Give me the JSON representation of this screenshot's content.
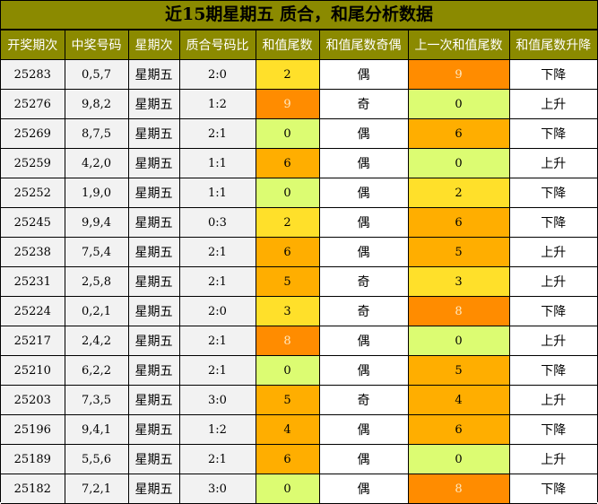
{
  "title": "近15期星期五 质合，和尾分析数据",
  "columns": [
    "开奖期次",
    "中奖号码",
    "星期次",
    "质合号码比",
    "和值尾数",
    "和值尾数奇偶",
    "上一次和值尾数",
    "和值尾数升降"
  ],
  "colors": {
    "header_bg": "#8b8a00",
    "header_text": "#ffffff",
    "orange": "#ff8c00",
    "amber": "#ffae00",
    "yellow": "#ffe02a",
    "lime": "#dcfc72",
    "grey": "#f2f2f2"
  },
  "rows": [
    {
      "period": "25283",
      "numbers": "0,5,7",
      "day": "星期五",
      "ratio": "2:0",
      "tail": "2",
      "tail_color": "yellow",
      "odd_even": "偶",
      "prev_tail": "9",
      "prev_color": "orange",
      "trend": "下降"
    },
    {
      "period": "25276",
      "numbers": "9,8,2",
      "day": "星期五",
      "ratio": "1:2",
      "tail": "9",
      "tail_color": "orange",
      "odd_even": "奇",
      "prev_tail": "0",
      "prev_color": "lime",
      "trend": "上升"
    },
    {
      "period": "25269",
      "numbers": "8,7,5",
      "day": "星期五",
      "ratio": "2:1",
      "tail": "0",
      "tail_color": "lime",
      "odd_even": "偶",
      "prev_tail": "6",
      "prev_color": "amber",
      "trend": "下降"
    },
    {
      "period": "25259",
      "numbers": "4,2,0",
      "day": "星期五",
      "ratio": "1:1",
      "tail": "6",
      "tail_color": "amber",
      "odd_even": "偶",
      "prev_tail": "0",
      "prev_color": "lime",
      "trend": "上升"
    },
    {
      "period": "25252",
      "numbers": "1,9,0",
      "day": "星期五",
      "ratio": "1:1",
      "tail": "0",
      "tail_color": "lime",
      "odd_even": "偶",
      "prev_tail": "2",
      "prev_color": "yellow",
      "trend": "下降"
    },
    {
      "period": "25245",
      "numbers": "9,9,4",
      "day": "星期五",
      "ratio": "0:3",
      "tail": "2",
      "tail_color": "yellow",
      "odd_even": "偶",
      "prev_tail": "6",
      "prev_color": "amber",
      "trend": "下降"
    },
    {
      "period": "25238",
      "numbers": "7,5,4",
      "day": "星期五",
      "ratio": "2:1",
      "tail": "6",
      "tail_color": "amber",
      "odd_even": "偶",
      "prev_tail": "5",
      "prev_color": "amber",
      "trend": "上升"
    },
    {
      "period": "25231",
      "numbers": "2,5,8",
      "day": "星期五",
      "ratio": "2:1",
      "tail": "5",
      "tail_color": "amber",
      "odd_even": "奇",
      "prev_tail": "3",
      "prev_color": "yellow",
      "trend": "上升"
    },
    {
      "period": "25224",
      "numbers": "0,2,1",
      "day": "星期五",
      "ratio": "2:0",
      "tail": "3",
      "tail_color": "yellow",
      "odd_even": "奇",
      "prev_tail": "8",
      "prev_color": "orange",
      "trend": "下降"
    },
    {
      "period": "25217",
      "numbers": "2,4,2",
      "day": "星期五",
      "ratio": "2:1",
      "tail": "8",
      "tail_color": "orange",
      "odd_even": "偶",
      "prev_tail": "0",
      "prev_color": "lime",
      "trend": "上升"
    },
    {
      "period": "25210",
      "numbers": "6,2,2",
      "day": "星期五",
      "ratio": "2:1",
      "tail": "0",
      "tail_color": "lime",
      "odd_even": "偶",
      "prev_tail": "5",
      "prev_color": "amber",
      "trend": "下降"
    },
    {
      "period": "25203",
      "numbers": "7,3,5",
      "day": "星期五",
      "ratio": "3:0",
      "tail": "5",
      "tail_color": "amber",
      "odd_even": "奇",
      "prev_tail": "4",
      "prev_color": "amber",
      "trend": "上升"
    },
    {
      "period": "25196",
      "numbers": "9,4,1",
      "day": "星期五",
      "ratio": "1:2",
      "tail": "4",
      "tail_color": "amber",
      "odd_even": "偶",
      "prev_tail": "6",
      "prev_color": "amber",
      "trend": "下降"
    },
    {
      "period": "25189",
      "numbers": "5,5,6",
      "day": "星期五",
      "ratio": "2:1",
      "tail": "6",
      "tail_color": "amber",
      "odd_even": "偶",
      "prev_tail": "0",
      "prev_color": "lime",
      "trend": "上升"
    },
    {
      "period": "25182",
      "numbers": "7,2,1",
      "day": "星期五",
      "ratio": "3:0",
      "tail": "0",
      "tail_color": "lime",
      "odd_even": "偶",
      "prev_tail": "8",
      "prev_color": "orange",
      "trend": "下降"
    }
  ]
}
